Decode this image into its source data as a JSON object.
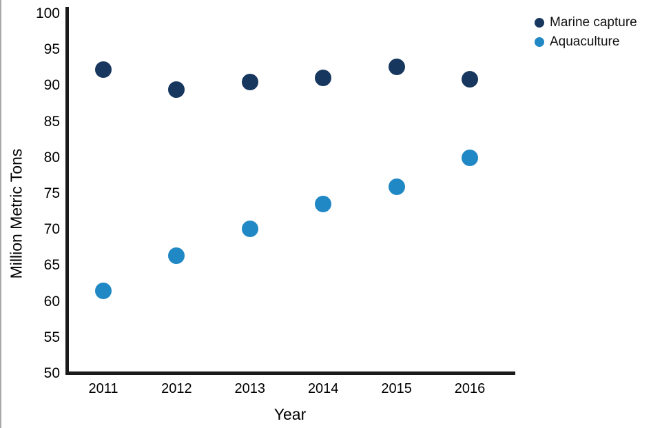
{
  "page": {
    "background_color": "#ffffff",
    "axis_color": "#1a1a1a",
    "text_color": "#000000"
  },
  "chart_data": {
    "type": "scatter",
    "title": "",
    "xlabel": "Year",
    "ylabel": "Million Metric Tons",
    "x": [
      "2011",
      "2012",
      "2013",
      "2014",
      "2015",
      "2016"
    ],
    "series": [
      {
        "name": "Marine capture",
        "color": "#17375e",
        "values": [
          92.2,
          89.5,
          90.5,
          91.1,
          92.6,
          90.9
        ]
      },
      {
        "name": "Aquaculture",
        "color": "#2088c4",
        "values": [
          61.5,
          66.4,
          70.1,
          73.6,
          76.0,
          80.0
        ]
      }
    ],
    "ylim": [
      50,
      100
    ],
    "yticks": [
      100,
      95,
      90,
      85,
      80,
      75,
      70,
      65,
      60,
      55,
      50
    ],
    "grid": false,
    "legend_position": "top-right",
    "marker_shape": "circle"
  }
}
